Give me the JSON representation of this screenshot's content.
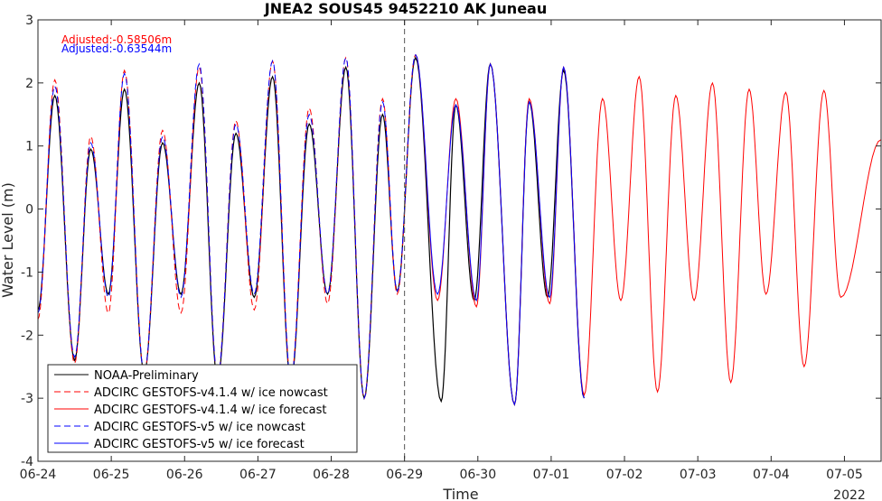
{
  "chart_data": {
    "type": "line",
    "title": "JNEA2 SOUS45 9452210 AK Juneau",
    "xlabel": "Time",
    "ylabel": "Water Level (m)",
    "x_unit": "days since 2022-06-24",
    "xlim": [
      0,
      11.5
    ],
    "ylim": [
      -4,
      3
    ],
    "x_tick_labels": [
      "06-24",
      "06-25",
      "06-26",
      "06-27",
      "06-28",
      "06-29",
      "06-30",
      "07-01",
      "07-02",
      "07-03",
      "07-04",
      "07-05"
    ],
    "x_year_label": "2022",
    "y_ticks": [
      -4,
      -3,
      -2,
      -1,
      0,
      1,
      2,
      3
    ],
    "forecast_start_x": 5,
    "annotations": [
      {
        "text": "Adjusted:-0.58506m",
        "color": "#ff0000"
      },
      {
        "text": "Adjusted:-0.63544m",
        "color": "#0000ff"
      }
    ],
    "legend_position": "bottom-left",
    "series": [
      {
        "name": "NOAA-Preliminary",
        "color": "#000000",
        "dash": "solid",
        "points": [
          [
            0.0,
            -1.6
          ],
          [
            0.23,
            1.8
          ],
          [
            0.5,
            -2.4
          ],
          [
            0.72,
            0.95
          ],
          [
            0.96,
            -1.35
          ],
          [
            1.18,
            1.9
          ],
          [
            1.45,
            -2.6
          ],
          [
            1.7,
            1.05
          ],
          [
            1.95,
            -1.35
          ],
          [
            2.2,
            2.0
          ],
          [
            2.45,
            -2.7
          ],
          [
            2.7,
            1.2
          ],
          [
            2.95,
            -1.4
          ],
          [
            3.2,
            2.1
          ],
          [
            3.45,
            -2.75
          ],
          [
            3.7,
            1.35
          ],
          [
            3.95,
            -1.35
          ],
          [
            4.2,
            2.25
          ],
          [
            4.45,
            -3.0
          ],
          [
            4.7,
            1.5
          ],
          [
            4.9,
            -1.3
          ],
          [
            5.15,
            2.4
          ],
          [
            5.5,
            -3.05
          ],
          [
            5.7,
            1.65
          ],
          [
            5.95,
            -1.45
          ],
          [
            6.17,
            2.3
          ],
          [
            6.5,
            -3.1
          ],
          [
            6.7,
            1.7
          ],
          [
            6.95,
            -1.4
          ],
          [
            7.17,
            2.2
          ],
          [
            7.45,
            -3.0
          ]
        ]
      },
      {
        "name": "ADCIRC GESTOFS-v4.1.4 w/ ice nowcast",
        "color": "#ff0000",
        "dash": "dashed",
        "points": [
          [
            0.0,
            -1.75
          ],
          [
            0.23,
            2.05
          ],
          [
            0.5,
            -2.45
          ],
          [
            0.72,
            1.15
          ],
          [
            0.96,
            -1.65
          ],
          [
            1.18,
            2.2
          ],
          [
            1.45,
            -2.6
          ],
          [
            1.7,
            1.25
          ],
          [
            1.95,
            -1.65
          ],
          [
            2.2,
            2.25
          ],
          [
            2.45,
            -2.65
          ],
          [
            2.7,
            1.4
          ],
          [
            2.95,
            -1.6
          ],
          [
            3.2,
            2.35
          ],
          [
            3.45,
            -2.7
          ],
          [
            3.7,
            1.6
          ],
          [
            3.95,
            -1.5
          ],
          [
            4.2,
            2.4
          ],
          [
            4.45,
            -3.0
          ],
          [
            4.7,
            1.75
          ],
          [
            4.9,
            -1.35
          ],
          [
            5.15,
            2.45
          ]
        ]
      },
      {
        "name": "ADCIRC GESTOFS-v4.1.4 w/ ice forecast",
        "color": "#ff0000",
        "dash": "solid",
        "points": [
          [
            5.15,
            2.45
          ],
          [
            5.45,
            -1.45
          ],
          [
            5.7,
            1.75
          ],
          [
            5.98,
            -1.55
          ],
          [
            6.17,
            2.3
          ],
          [
            6.5,
            -3.1
          ],
          [
            6.7,
            1.75
          ],
          [
            6.98,
            -1.5
          ],
          [
            7.17,
            2.25
          ],
          [
            7.45,
            -2.95
          ],
          [
            7.7,
            1.75
          ],
          [
            7.95,
            -1.45
          ],
          [
            8.2,
            2.1
          ],
          [
            8.45,
            -2.9
          ],
          [
            8.7,
            1.8
          ],
          [
            8.95,
            -1.45
          ],
          [
            9.2,
            2.0
          ],
          [
            9.45,
            -2.75
          ],
          [
            9.7,
            1.9
          ],
          [
            9.93,
            -1.35
          ],
          [
            10.2,
            1.85
          ],
          [
            10.45,
            -2.5
          ],
          [
            10.72,
            1.88
          ],
          [
            10.95,
            -1.4
          ],
          [
            11.5,
            1.1
          ]
        ]
      },
      {
        "name": "ADCIRC GESTOFS-v5 w/ ice nowcast",
        "color": "#0000ff",
        "dash": "dashed",
        "points": [
          [
            0.0,
            -1.65
          ],
          [
            0.23,
            1.95
          ],
          [
            0.5,
            -2.35
          ],
          [
            0.72,
            1.05
          ],
          [
            0.96,
            -1.4
          ],
          [
            1.18,
            2.15
          ],
          [
            1.45,
            -2.6
          ],
          [
            1.7,
            1.15
          ],
          [
            1.95,
            -1.4
          ],
          [
            2.2,
            2.3
          ],
          [
            2.45,
            -2.65
          ],
          [
            2.7,
            1.35
          ],
          [
            2.95,
            -1.35
          ],
          [
            3.2,
            2.35
          ],
          [
            3.45,
            -2.7
          ],
          [
            3.7,
            1.5
          ],
          [
            3.95,
            -1.35
          ],
          [
            4.2,
            2.4
          ],
          [
            4.45,
            -3.0
          ],
          [
            4.7,
            1.7
          ],
          [
            4.9,
            -1.3
          ],
          [
            5.15,
            2.45
          ]
        ]
      },
      {
        "name": "ADCIRC GESTOFS-v5 w/ ice forecast",
        "color": "#0000ff",
        "dash": "solid",
        "points": [
          [
            5.15,
            2.45
          ],
          [
            5.45,
            -1.35
          ],
          [
            5.7,
            1.65
          ],
          [
            5.98,
            -1.45
          ],
          [
            6.17,
            2.3
          ],
          [
            6.5,
            -3.1
          ],
          [
            6.7,
            1.7
          ],
          [
            6.98,
            -1.4
          ],
          [
            7.17,
            2.25
          ],
          [
            7.45,
            -3.0
          ]
        ]
      }
    ]
  }
}
